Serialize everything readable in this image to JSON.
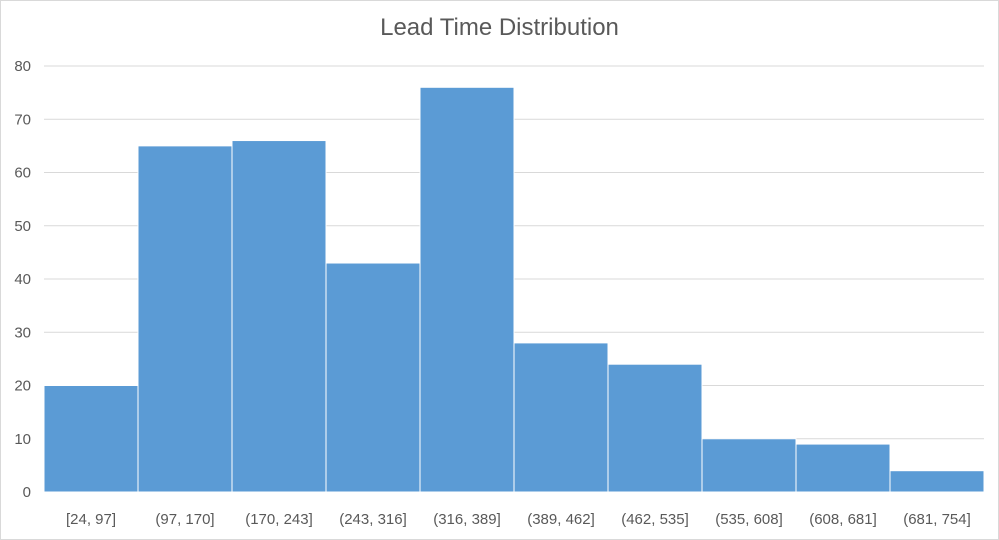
{
  "chart_data": {
    "type": "bar",
    "title": "Lead Time Distribution",
    "xlabel": "",
    "ylabel": "",
    "categories": [
      "[24, 97]",
      "(97, 170]",
      "(170, 243]",
      "(243, 316]",
      "(316, 389]",
      "(389, 462]",
      "(462, 535]",
      "(535, 608]",
      "(608, 681]",
      "(681, 754]"
    ],
    "values": [
      20,
      65,
      66,
      43,
      76,
      28,
      24,
      10,
      9,
      4
    ],
    "ylim": [
      0,
      80
    ],
    "yticks": [
      0,
      10,
      20,
      30,
      40,
      50,
      60,
      70,
      80
    ],
    "grid": true,
    "legend": "none",
    "colors": {
      "bar": "#5b9bd5",
      "grid": "#d9d9d9",
      "tick_label": "#595959",
      "title": "#595959"
    }
  }
}
